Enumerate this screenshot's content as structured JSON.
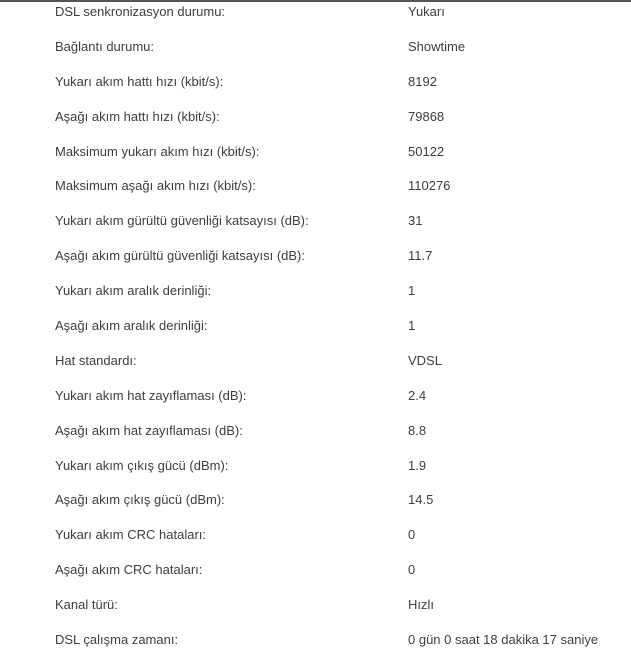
{
  "table": {
    "rows": [
      {
        "label": "DSL senkronizasyon durumu:",
        "value": "Yukarı"
      },
      {
        "label": "Bağlantı durumu:",
        "value": "Showtime"
      },
      {
        "label": "Yukarı akım hattı hızı (kbit/s):",
        "value": "8192"
      },
      {
        "label": "Aşağı akım hattı hızı (kbit/s):",
        "value": "79868"
      },
      {
        "label": "Maksimum yukarı akım hızı (kbit/s):",
        "value": "50122"
      },
      {
        "label": "Maksimum aşağı akım hızı (kbit/s):",
        "value": "110276"
      },
      {
        "label": "Yukarı akım gürültü güvenliği katsayısı (dB):",
        "value": "31"
      },
      {
        "label": "Aşağı akım gürültü güvenliği katsayısı (dB):",
        "value": "11.7"
      },
      {
        "label": "Yukarı akım aralık derinliği:",
        "value": "1"
      },
      {
        "label": "Aşağı akım aralık derinliği:",
        "value": "1"
      },
      {
        "label": "Hat standardı:",
        "value": "VDSL"
      },
      {
        "label": "Yukarı akım hat zayıflaması (dB):",
        "value": "2.4"
      },
      {
        "label": "Aşağı akım hat zayıflaması (dB):",
        "value": "8.8"
      },
      {
        "label": "Yukarı akım çıkış gücü (dBm):",
        "value": "1.9"
      },
      {
        "label": "Aşağı akım çıkış gücü (dBm):",
        "value": "14.5"
      },
      {
        "label": "Yukarı akım CRC hataları:",
        "value": "0"
      },
      {
        "label": "Aşağı akım CRC hataları:",
        "value": "0"
      },
      {
        "label": "Kanal türü:",
        "value": "Hızlı"
      },
      {
        "label": "DSL çalışma zamanı:",
        "value": "0 gün 0 saat 18 dakika 17 saniye"
      }
    ],
    "colors": {
      "text": "#3e3e3e",
      "top_border": "#555555",
      "background": "#ffffff"
    }
  }
}
